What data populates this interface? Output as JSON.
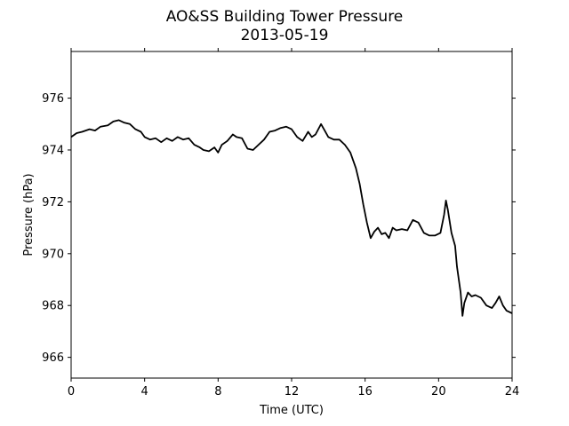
{
  "chart_data": {
    "type": "line",
    "title": "AO&SS Building Tower Pressure",
    "subtitle": "2013-05-19",
    "xlabel": "Time (UTC)",
    "ylabel": "Pressure (hPa)",
    "xlim": [
      0,
      24
    ],
    "ylim": [
      965.2,
      977.8
    ],
    "xticks": [
      0,
      4,
      8,
      12,
      16,
      20,
      24
    ],
    "yticks": [
      966,
      968,
      970,
      972,
      974,
      976
    ],
    "grid": false,
    "line_color": "#000000",
    "series": [
      {
        "x": [
          0.0,
          0.3,
          0.6,
          1.0,
          1.3,
          1.6,
          2.0,
          2.3,
          2.6,
          2.9,
          3.2,
          3.5,
          3.8,
          4.0,
          4.3,
          4.6,
          4.9,
          5.2,
          5.5,
          5.8,
          6.1,
          6.4,
          6.7,
          7.0,
          7.2,
          7.5,
          7.8,
          8.0,
          8.2,
          8.5,
          8.8,
          9.0,
          9.3,
          9.6,
          9.9,
          10.2,
          10.5,
          10.8,
          11.1,
          11.4,
          11.7,
          12.0,
          12.3,
          12.6,
          12.9,
          13.1,
          13.3,
          13.6,
          13.8,
          14.0,
          14.3,
          14.6,
          14.9,
          15.2,
          15.5,
          15.7,
          15.9,
          16.1,
          16.3,
          16.5,
          16.7,
          16.9,
          17.1,
          17.3,
          17.5,
          17.7,
          18.0,
          18.3,
          18.6,
          18.9,
          19.2,
          19.5,
          19.8,
          20.1,
          20.3,
          20.4,
          20.5,
          20.7,
          20.9,
          21.0,
          21.2,
          21.3,
          21.4,
          21.6,
          21.8,
          22.0,
          22.3,
          22.6,
          22.9,
          23.1,
          23.3,
          23.5,
          23.7,
          24.0
        ],
        "y": [
          974.5,
          974.65,
          974.7,
          974.8,
          974.75,
          974.9,
          974.95,
          975.1,
          975.15,
          975.05,
          975.0,
          974.8,
          974.7,
          974.5,
          974.4,
          974.45,
          974.3,
          974.45,
          974.35,
          974.5,
          974.4,
          974.45,
          974.2,
          974.1,
          974.0,
          973.95,
          974.1,
          973.9,
          974.2,
          974.35,
          974.6,
          974.5,
          974.45,
          974.05,
          974.0,
          974.2,
          974.4,
          974.7,
          974.75,
          974.85,
          974.9,
          974.8,
          974.5,
          974.35,
          974.7,
          974.5,
          974.6,
          975.0,
          974.75,
          974.5,
          974.4,
          974.4,
          974.2,
          973.9,
          973.3,
          972.7,
          971.9,
          971.2,
          970.6,
          970.85,
          971.0,
          970.75,
          970.8,
          970.6,
          971.0,
          970.9,
          970.95,
          970.9,
          971.3,
          971.2,
          970.8,
          970.7,
          970.7,
          970.8,
          971.5,
          972.05,
          971.7,
          970.8,
          970.3,
          969.5,
          968.5,
          967.6,
          968.1,
          968.5,
          968.35,
          968.4,
          968.3,
          968.0,
          967.9,
          968.1,
          968.35,
          968.0,
          967.8,
          967.7
        ]
      }
    ]
  }
}
